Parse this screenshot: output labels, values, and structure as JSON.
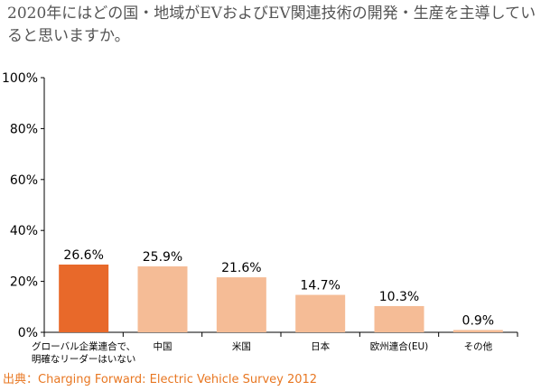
{
  "title": "2020年にはどの国・地域がEVおよびEV関連技術の開発・生産を主導していると思いますか。",
  "source": "出典：Charging Forward: Electric Vehicle Survey 2012",
  "colors": {
    "highlight": "#e8692a",
    "normal": "#f5bc96",
    "axis": "#000000",
    "title": "#555555",
    "source": "#e87722"
  },
  "chart_data": {
    "type": "bar",
    "categories": [
      "グローバル企業連合で、明確なリーダーはいない",
      "中国",
      "米国",
      "日本",
      "欧州連合(EU)",
      "その他"
    ],
    "values": [
      26.6,
      25.9,
      21.6,
      14.7,
      10.3,
      0.9
    ],
    "value_labels": [
      "26.6%",
      "25.9%",
      "21.6%",
      "14.7%",
      "10.3%",
      "0.9%"
    ],
    "highlight_index": 0,
    "ylim": [
      0,
      100
    ],
    "yticks": [
      0,
      20,
      40,
      60,
      80,
      100
    ],
    "ytick_labels": [
      "0%",
      "20%",
      "40%",
      "60%",
      "80%",
      "100%"
    ],
    "grid": false,
    "legend": "none"
  }
}
